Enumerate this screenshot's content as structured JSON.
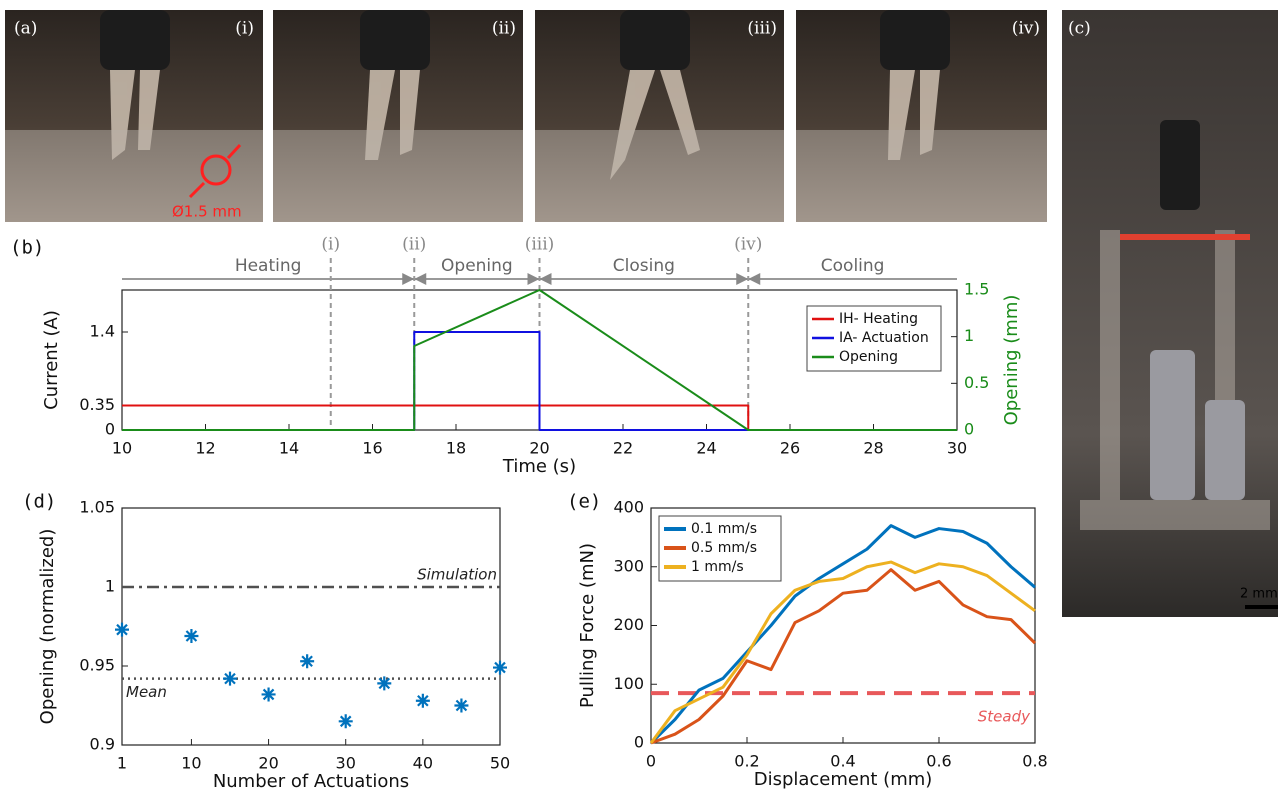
{
  "photos": {
    "panel_a": "(a)",
    "frames": [
      "(i)",
      "(ii)",
      "(iii)",
      "(iv)"
    ],
    "diameter_label": "Ø1.5 mm",
    "panel_c": "(c)",
    "scale_bar": "2 mm"
  },
  "chart_data": [
    {
      "type": "line",
      "panel": "(b)",
      "xlabel": "Time (s)",
      "ylabel": "Current (A)",
      "y2label": "Opening (mm)",
      "xlim": [
        10,
        30
      ],
      "xticks": [
        10,
        12,
        14,
        16,
        18,
        20,
        22,
        24,
        26,
        28,
        30
      ],
      "ylim": [
        0,
        2
      ],
      "yticks": [
        0,
        0.35,
        1.4
      ],
      "y2lim": [
        0,
        1.5
      ],
      "y2ticks": [
        0,
        0.5,
        1,
        1.5
      ],
      "legend": "upper right",
      "series": [
        {
          "name": "IH- Heating",
          "color": "#e01010",
          "x": [
            10,
            25,
            25,
            30
          ],
          "values": [
            0.35,
            0.35,
            0,
            0
          ]
        },
        {
          "name": "IA- Actuation",
          "color": "#1010e0",
          "x": [
            10,
            17,
            17,
            20,
            20,
            30
          ],
          "values": [
            0,
            0,
            1.4,
            1.4,
            0,
            0
          ]
        },
        {
          "name": "Opening",
          "color": "#1a8c1a",
          "axis": "y2",
          "x": [
            10,
            17,
            17,
            20,
            25,
            30
          ],
          "values": [
            0,
            0,
            0.9,
            1.5,
            0,
            0
          ]
        }
      ],
      "markers": [
        {
          "x": 15,
          "label": "(i)"
        },
        {
          "x": 17,
          "label": "(ii)"
        },
        {
          "x": 20,
          "label": "(iii)"
        },
        {
          "x": 25,
          "label": "(iv)"
        }
      ],
      "phases": [
        {
          "label": "Heating",
          "start": 10,
          "end": 17
        },
        {
          "label": "Opening",
          "start": 17,
          "end": 20
        },
        {
          "label": "Closing",
          "start": 20,
          "end": 25
        },
        {
          "label": "Cooling",
          "start": 25,
          "end": 30
        }
      ]
    },
    {
      "type": "scatter",
      "panel": "(d)",
      "xlabel": "Number of Actuations",
      "ylabel": "Opening (normalized)",
      "xlim": [
        1,
        50
      ],
      "xticks": [
        1,
        10,
        20,
        30,
        40,
        50
      ],
      "ylim": [
        0.9,
        1.05
      ],
      "yticks": [
        0.9,
        0.95,
        1,
        1.05
      ],
      "color": "#0072bd",
      "x": [
        1,
        10,
        15,
        20,
        25,
        30,
        35,
        40,
        45,
        50
      ],
      "values": [
        0.973,
        0.969,
        0.942,
        0.932,
        0.953,
        0.915,
        0.939,
        0.928,
        0.925,
        0.949
      ],
      "reference_lines": [
        {
          "label": "Simulation",
          "value": 1,
          "style": "dashdot",
          "color": "#505050"
        },
        {
          "label": "Mean",
          "value": 0.942,
          "style": "dotted",
          "color": "#505050"
        }
      ]
    },
    {
      "type": "line",
      "panel": "(e)",
      "xlabel": "Displacement (mm)",
      "ylabel": "Pulling Force (mN)",
      "xlim": [
        0,
        0.8
      ],
      "xticks": [
        0,
        0.2,
        0.4,
        0.6,
        0.8
      ],
      "ylim": [
        0,
        400
      ],
      "yticks": [
        0,
        100,
        200,
        300,
        400
      ],
      "legend": "upper left",
      "x": [
        0,
        0.05,
        0.1,
        0.15,
        0.2,
        0.25,
        0.3,
        0.35,
        0.4,
        0.45,
        0.5,
        0.55,
        0.6,
        0.65,
        0.7,
        0.75,
        0.8
      ],
      "series": [
        {
          "name": "0.1 mm/s",
          "color": "#0072bd",
          "values": [
            0,
            40,
            90,
            110,
            155,
            200,
            250,
            280,
            305,
            330,
            370,
            350,
            365,
            360,
            340,
            300,
            265
          ]
        },
        {
          "name": "0.5 mm/s",
          "color": "#d95319",
          "values": [
            0,
            15,
            40,
            80,
            140,
            125,
            205,
            225,
            255,
            260,
            295,
            260,
            275,
            235,
            215,
            210,
            170
          ]
        },
        {
          "name": "1 mm/s",
          "color": "#edb120",
          "values": [
            0,
            55,
            75,
            95,
            150,
            220,
            260,
            275,
            280,
            300,
            308,
            290,
            305,
            300,
            285,
            255,
            225
          ]
        }
      ],
      "reference_lines": [
        {
          "label": "Steady",
          "value": 85,
          "style": "dashed",
          "color": "#e8585a"
        }
      ]
    }
  ]
}
